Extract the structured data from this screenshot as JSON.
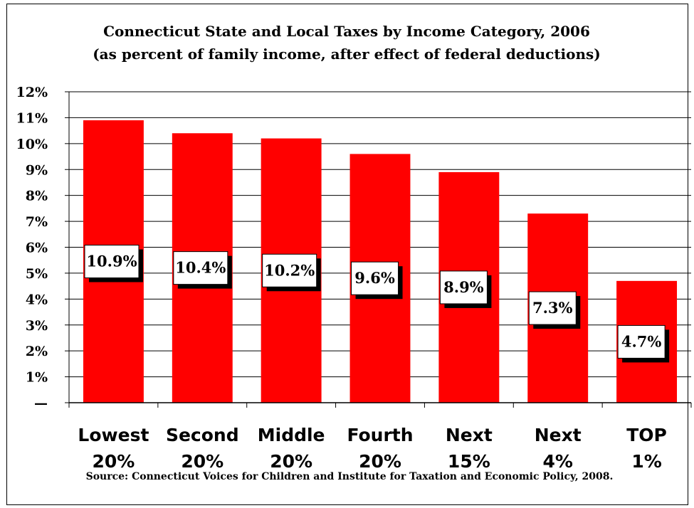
{
  "chart_data": {
    "type": "bar",
    "title": "Connecticut State and Local Taxes by Income Category, 2006",
    "subtitle": "(as percent of family income, after effect of federal deductions)",
    "categories": [
      [
        "Lowest",
        "20%"
      ],
      [
        "Second",
        "20%"
      ],
      [
        "Middle",
        "20%"
      ],
      [
        "Fourth",
        "20%"
      ],
      [
        "Next",
        "15%"
      ],
      [
        "Next",
        "4%"
      ],
      [
        "TOP",
        "1%"
      ]
    ],
    "values": [
      10.9,
      10.4,
      10.2,
      9.6,
      8.9,
      7.3,
      4.7
    ],
    "data_labels": [
      "10.9%",
      "10.4%",
      "10.2%",
      "9.6%",
      "8.9%",
      "7.3%",
      "4.7%"
    ],
    "ylim": [
      0,
      12
    ],
    "yticks": [
      "—",
      "1%",
      "2%",
      "3%",
      "4%",
      "5%",
      "6%",
      "7%",
      "8%",
      "9%",
      "10%",
      "11%",
      "12%"
    ],
    "grid": true,
    "bar_color": "#ff0000",
    "source": "Source: Connecticut Voices for Children and Institute for Taxation and Economic Policy, 2008."
  }
}
